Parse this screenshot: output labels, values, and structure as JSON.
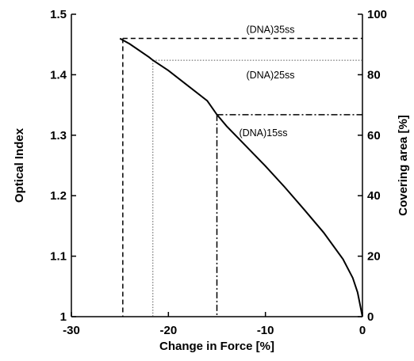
{
  "chart_data": {
    "type": "line",
    "title": "",
    "xlabel": "Change in Force [%]",
    "ylabel": "Optical Index",
    "ylabel_right": "Covering area [%]",
    "xlim": [
      -30,
      0
    ],
    "ylim": [
      1.0,
      1.5
    ],
    "ylim_right": [
      0,
      100
    ],
    "x_ticks": [
      -30,
      -20,
      -10,
      0
    ],
    "y_ticks": [
      1,
      1.1,
      1.2,
      1.3,
      1.4,
      1.5
    ],
    "y_ticks_right": [
      0,
      20,
      40,
      60,
      80,
      100
    ],
    "grid": false,
    "series": [
      {
        "x": [
          -25.0,
          -24.0,
          -22.0,
          -21.6,
          -20.0,
          -18.0,
          -16.0,
          -15.0,
          -14.0,
          -12.0,
          -10.0,
          -8.0,
          -6.0,
          -4.0,
          -2.0,
          -1.0,
          -0.5,
          0.0
        ],
        "y": [
          1.46,
          1.451,
          1.429,
          1.424,
          1.407,
          1.382,
          1.357,
          1.334,
          1.315,
          1.282,
          1.249,
          1.214,
          1.177,
          1.139,
          1.095,
          1.064,
          1.04,
          1.0
        ]
      }
    ],
    "annotations": [
      {
        "label": "(DNA)35ss",
        "x": -24.7,
        "y": 1.46,
        "line_style": "dashed"
      },
      {
        "label": "(DNA)25ss",
        "x": -21.6,
        "y": 1.424,
        "line_style": "dotted"
      },
      {
        "label": "(DNA)15ss",
        "x": -15.0,
        "y": 1.334,
        "line_style": "dash-dot"
      }
    ]
  }
}
